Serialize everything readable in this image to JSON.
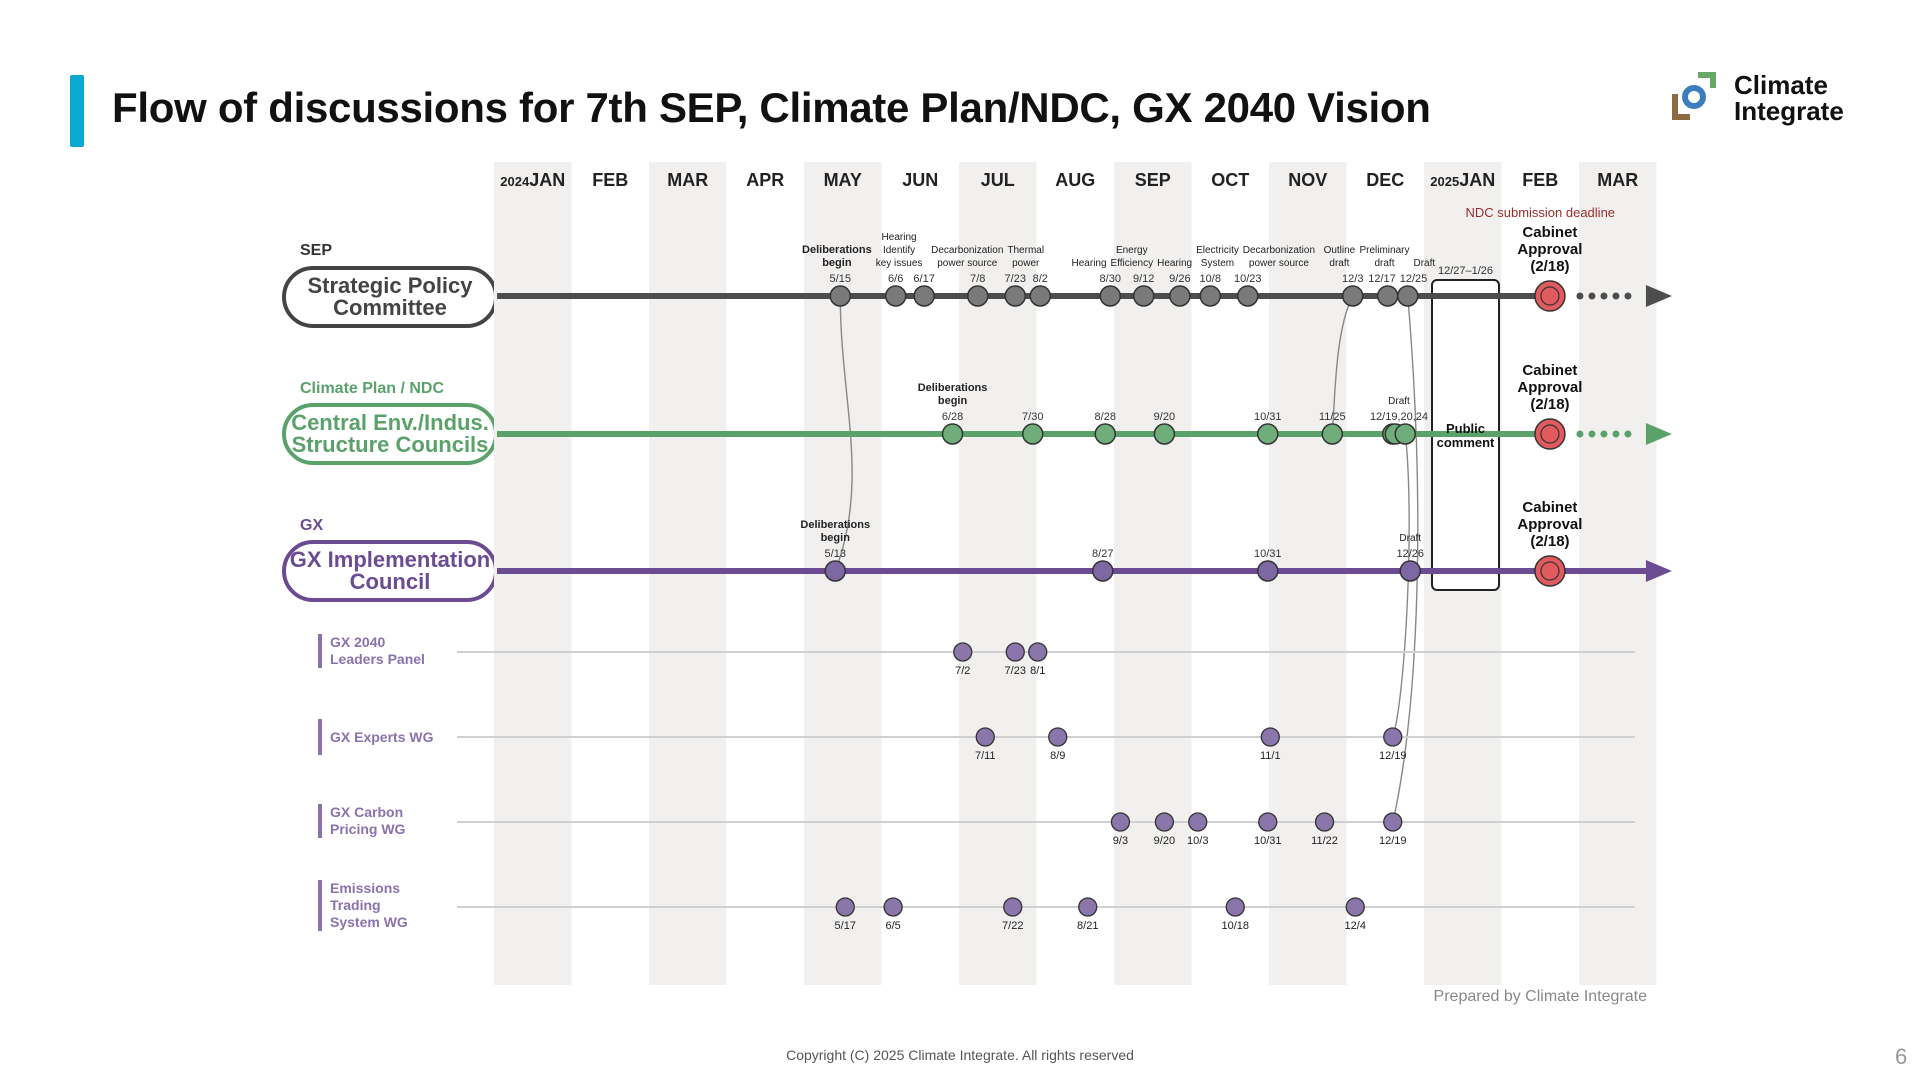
{
  "header": {
    "title": "Flow of discussions for 7th SEP, Climate Plan/NDC, GX 2040 Vision",
    "accent_color": "#0aa8d3"
  },
  "logo": {
    "line1": "Climate",
    "line2": "Integrate",
    "icon": "climate-integrate-logo-icon"
  },
  "footer": {
    "copyright": "Copyright (C) 2025 Climate Integrate. All rights reserved",
    "prepared_by": "Prepared by Climate Integrate",
    "page_number": "6"
  },
  "months": [
    {
      "label": "JAN",
      "year": "2024"
    },
    {
      "label": "FEB"
    },
    {
      "label": "MAR"
    },
    {
      "label": "APR"
    },
    {
      "label": "MAY"
    },
    {
      "label": "JUN"
    },
    {
      "label": "JUL"
    },
    {
      "label": "AUG"
    },
    {
      "label": "SEP"
    },
    {
      "label": "OCT"
    },
    {
      "label": "NOV"
    },
    {
      "label": "DEC"
    },
    {
      "label": "JAN",
      "year": "2025"
    },
    {
      "label": "FEB"
    },
    {
      "label": "MAR"
    }
  ],
  "ndc_deadline_label": "NDC submission deadline",
  "public_comment": {
    "label_line1": "Public",
    "label_line2": "comment",
    "period": "12/27–1/26"
  },
  "lanes": [
    {
      "id": "sep",
      "category": "SEP",
      "name_line1": "Strategic Policy",
      "name_line2": "Committee",
      "color": "#4d4d4d",
      "node_color": "#7a7a7a",
      "arrow": "dotted",
      "cabinet": {
        "line1": "Cabinet",
        "line2": "Approval",
        "line3": "(2/18)"
      },
      "events": [
        {
          "date": "5/15",
          "label": "Deliberations begin",
          "bold": true
        },
        {
          "date": "6/6",
          "label": "Hearing Identify key issues"
        },
        {
          "date": "6/17",
          "label": ""
        },
        {
          "date": "7/8",
          "label": "Decarbonization power source"
        },
        {
          "date": "7/23",
          "label": "Thermal power"
        },
        {
          "date": "8/2",
          "label": ""
        },
        {
          "date": "8/30",
          "label": "Hearing"
        },
        {
          "date": "9/12",
          "label": "Energy Efficiency"
        },
        {
          "date": "9/26",
          "label": "Hearing"
        },
        {
          "date": "10/8",
          "label": "Electricity System"
        },
        {
          "date": "10/23",
          "label": "Decarbonization power source"
        },
        {
          "date": "12/3",
          "label": "Outline draft"
        },
        {
          "date": "12/17",
          "label": "Preliminary draft"
        },
        {
          "date": "12/25",
          "label": "Draft"
        }
      ]
    },
    {
      "id": "ndc",
      "category": "Climate Plan / NDC",
      "name_line1": "Central Env./Indus.",
      "name_line2": "Structure Councils",
      "color": "#5aa26a",
      "node_color": "#6fae7b",
      "arrow": "dotted",
      "cabinet": {
        "line1": "Cabinet",
        "line2": "Approval",
        "line3": "(2/18)"
      },
      "events": [
        {
          "date": "6/28",
          "label": "Deliberations begin",
          "bold": true
        },
        {
          "date": "7/30",
          "label": ""
        },
        {
          "date": "8/28",
          "label": ""
        },
        {
          "date": "9/20",
          "label": ""
        },
        {
          "date": "10/31",
          "label": ""
        },
        {
          "date": "11/25",
          "label": ""
        },
        {
          "date": "12/19,20,24",
          "label": "Draft",
          "cluster": [
            "12/19",
            "12/20",
            "12/24"
          ]
        }
      ]
    },
    {
      "id": "gx",
      "category": "GX",
      "name_line1": "GX Implementation",
      "name_line2": "Council",
      "color": "#6b4c93",
      "node_color": "#7d68a3",
      "arrow": "solid",
      "cabinet": {
        "line1": "Cabinet",
        "line2": "Approval",
        "line3": "(2/18)"
      },
      "events": [
        {
          "date": "5/13",
          "label": "Deliberations begin",
          "bold": true
        },
        {
          "date": "8/27",
          "label": ""
        },
        {
          "date": "10/31",
          "label": ""
        },
        {
          "date": "12/26",
          "label": "Draft"
        }
      ]
    }
  ],
  "sub_lanes": [
    {
      "id": "leaders",
      "name_line1": "GX 2040",
      "name_line2": "Leaders Panel",
      "name_line3": "",
      "dates": [
        "7/2",
        "7/23",
        "8/1"
      ]
    },
    {
      "id": "experts",
      "name_line1": "GX Experts WG",
      "name_line2": "",
      "name_line3": "",
      "dates": [
        "7/11",
        "8/9",
        "11/1",
        "12/19"
      ]
    },
    {
      "id": "carbon",
      "name_line1": "GX Carbon",
      "name_line2": "Pricing WG",
      "name_line3": "",
      "dates": [
        "9/3",
        "9/20",
        "10/3",
        "10/31",
        "11/22",
        "12/19"
      ]
    },
    {
      "id": "ets",
      "name_line1": "Emissions",
      "name_line2": "Trading",
      "name_line3": "System WG",
      "dates": [
        "5/17",
        "6/5",
        "7/22",
        "8/21",
        "10/18",
        "12/4"
      ]
    }
  ],
  "colors": {
    "sub_node": "#8a76aa",
    "cabinet": "#e05a5e",
    "band": "#f1f0ef",
    "deadline_text": "#9b2a2a"
  }
}
